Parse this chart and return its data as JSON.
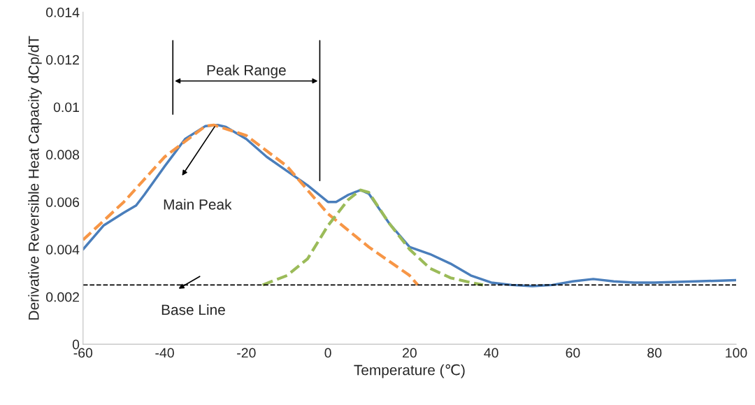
{
  "chart_data": {
    "type": "line",
    "xlabel": "Temperature (℃)",
    "ylabel": "Derivative Reversible Heat Capacity dCp/dT",
    "xlim": [
      -60,
      100
    ],
    "xticks": [
      -60,
      -40,
      -20,
      0,
      20,
      40,
      60,
      80,
      100
    ],
    "ylim": [
      0,
      0.014
    ],
    "yticks": [
      0,
      0.002,
      0.004,
      0.006,
      0.008,
      0.01,
      0.012,
      0.014
    ],
    "grid": false,
    "legend": false,
    "series": [
      {
        "color": "#4a7ebb",
        "line_style": "solid",
        "x": [
          -60,
          -55,
          -50,
          -47,
          -45,
          -40,
          -35,
          -30,
          -27,
          -25,
          -20,
          -15,
          -10,
          -5,
          0,
          2,
          5,
          8,
          10,
          15,
          20,
          25,
          30,
          35,
          40,
          45,
          50,
          55,
          60,
          65,
          70,
          75,
          80,
          90,
          100
        ],
        "values": [
          0.004,
          0.005,
          0.00555,
          0.00585,
          0.0063,
          0.0075,
          0.00865,
          0.0092,
          0.00924,
          0.00916,
          0.00865,
          0.0079,
          0.0073,
          0.0067,
          0.006,
          0.006,
          0.0063,
          0.0065,
          0.00635,
          0.0051,
          0.0041,
          0.0038,
          0.0034,
          0.0029,
          0.0026,
          0.0025,
          0.00245,
          0.0025,
          0.00265,
          0.00275,
          0.00265,
          0.0026,
          0.0026,
          0.00265,
          0.0027
        ]
      },
      {
        "color": "#f79646",
        "line_style": "dashed",
        "x": [
          -60,
          -50,
          -40,
          -30,
          -28,
          -20,
          -10,
          0,
          10,
          20,
          22
        ],
        "values": [
          0.0044,
          0.006,
          0.0079,
          0.0092,
          0.00924,
          0.0088,
          0.0075,
          0.0055,
          0.0041,
          0.0029,
          0.0025
        ]
      },
      {
        "color": "#9bbb59",
        "line_style": "dashed",
        "x": [
          -16,
          -10,
          -5,
          0,
          5,
          8,
          10,
          15,
          20,
          25,
          30,
          35,
          38
        ],
        "values": [
          0.0025,
          0.0029,
          0.0036,
          0.005,
          0.0061,
          0.0065,
          0.0064,
          0.0051,
          0.004,
          0.0032,
          0.0028,
          0.0026,
          0.0025
        ]
      },
      {
        "color": "#000000",
        "line_style": "solid",
        "x": [
          -38,
          -38
        ],
        "values": [
          0.0097,
          0.0128
        ]
      },
      {
        "color": "#000000",
        "line_style": "solid",
        "x": [
          -2,
          -2
        ],
        "values": [
          0.0069,
          0.0128
        ]
      }
    ],
    "ref_lines": [
      {
        "axis": "y",
        "value": 0.0025,
        "color": "#000000",
        "line_style": "dashed"
      }
    ],
    "annotations": [
      "Peak Range",
      "Main Peak",
      "Base Line"
    ]
  }
}
